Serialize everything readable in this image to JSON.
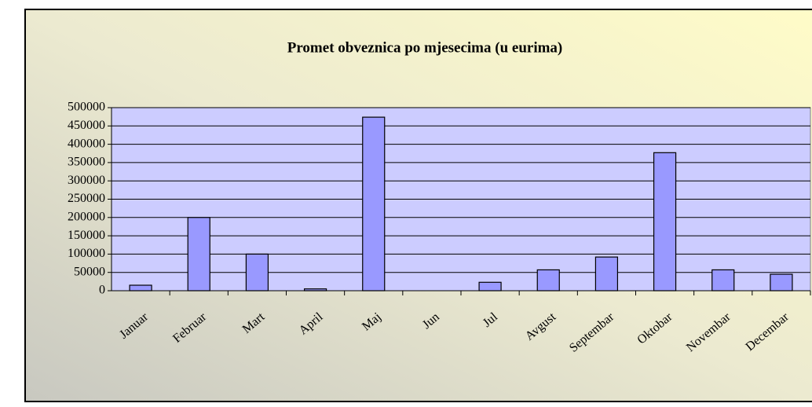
{
  "chart_data": {
    "type": "bar",
    "title": "Promet obveznica po mjesecima (u eurima)",
    "categories": [
      "Januar",
      "Februar",
      "Mart",
      "April",
      "Maj",
      "Jun",
      "Jul",
      "Avgust",
      "Septembar",
      "Oktobar",
      "Novembar",
      "Decembar"
    ],
    "values": [
      15000,
      200000,
      100000,
      5000,
      474000,
      0,
      23000,
      57000,
      92000,
      377000,
      57000,
      45000
    ],
    "color": "#9999ff",
    "ylim": [
      0,
      500000
    ],
    "yticks": [
      0,
      50000,
      100000,
      150000,
      200000,
      250000,
      300000,
      350000,
      400000,
      450000,
      500000
    ],
    "grid": true
  }
}
